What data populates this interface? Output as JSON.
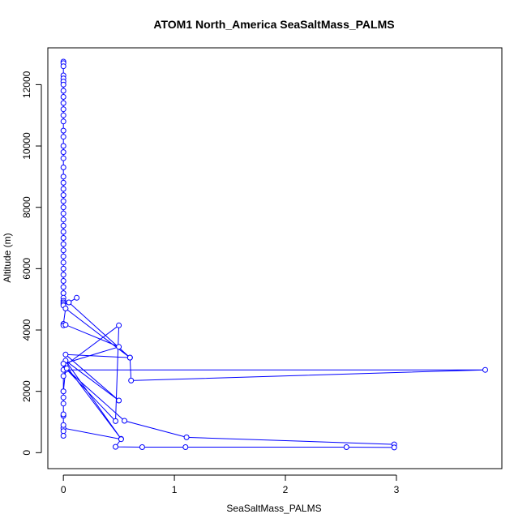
{
  "chart_data": {
    "type": "line",
    "title": "ATOM1 North_America SeaSaltMass_PALMS",
    "xlabel": "SeaSaltMass_PALMS",
    "ylabel": "Altitude (m)",
    "xlim": [
      -0.14,
      3.95
    ],
    "ylim": [
      -520,
      13200
    ],
    "x_ticks": [
      0,
      1,
      2,
      3
    ],
    "y_ticks": [
      0,
      2000,
      4000,
      6000,
      8000,
      10000,
      12000
    ],
    "grid": false,
    "legend": "none",
    "marker": "open-circle",
    "color": "#0000ff",
    "series": [
      {
        "x": [
          0,
          0,
          0,
          0,
          0,
          0,
          0,
          0,
          0,
          0,
          0,
          0,
          0,
          0,
          0,
          0,
          0,
          0,
          0,
          0,
          0,
          0,
          0,
          0,
          0,
          0,
          0,
          0,
          0,
          0,
          0,
          0,
          0,
          0,
          0,
          0,
          0,
          0,
          0,
          0,
          0,
          0,
          0,
          0,
          0.12,
          0.05,
          0.6,
          0.02,
          0.5,
          0.02,
          0.52,
          0.02,
          0.5,
          0.47,
          0.02,
          0.55,
          1.11,
          2.98,
          2.98,
          2.55,
          1.1,
          0.71,
          0.47,
          0.52,
          0,
          0,
          0,
          0.02,
          3.8,
          0.61,
          0.6,
          0.02,
          0,
          0,
          0.02,
          0.5,
          0,
          0,
          0.03,
          0,
          0,
          0,
          0,
          0,
          0,
          0,
          0
        ],
        "y": [
          12750,
          12700,
          12600,
          12300,
          12200,
          12100,
          12000,
          11800,
          11600,
          11400,
          11200,
          11000,
          10800,
          10500,
          10300,
          10000,
          9800,
          9600,
          9300,
          9000,
          8800,
          8600,
          8400,
          8200,
          8000,
          7800,
          7600,
          7400,
          7200,
          7000,
          6800,
          6600,
          6400,
          6200,
          6000,
          5800,
          5600,
          5400,
          5200,
          5050,
          4950,
          4900,
          4850,
          4800,
          5050,
          4900,
          3100,
          3200,
          1700,
          3000,
          450,
          2850,
          4150,
          1030,
          2750,
          1040,
          500,
          270,
          170,
          180,
          180,
          180,
          190,
          440,
          800,
          1200,
          2000,
          2700,
          2700,
          2350,
          3100,
          4700,
          4200,
          4150,
          4170,
          3450,
          2900,
          2700,
          2750,
          2500,
          2000,
          1800,
          1600,
          1250,
          900,
          700,
          550
        ]
      }
    ]
  }
}
